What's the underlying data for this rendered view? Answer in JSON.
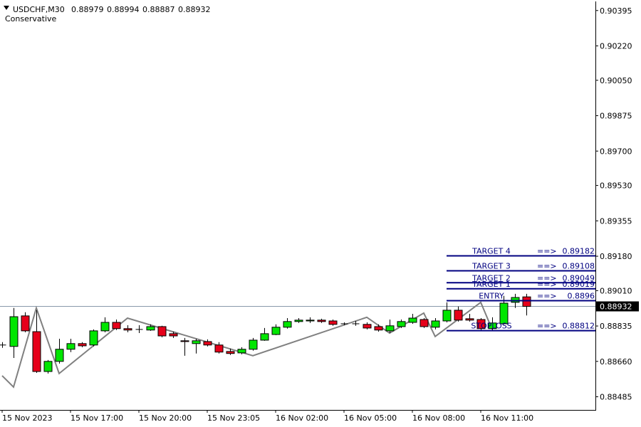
{
  "chart_data": {
    "type": "candlestick",
    "symbol": "USDCHF,M30",
    "subtitle": "Conservative",
    "categories": [
      "15 Nov 2023",
      null,
      null,
      null,
      null,
      null,
      "15 Nov 17:00",
      null,
      null,
      null,
      null,
      null,
      "15 Nov 20:00",
      null,
      null,
      null,
      null,
      null,
      "15 Nov 23:05",
      null,
      null,
      null,
      null,
      null,
      "16 Nov 02:00",
      null,
      null,
      null,
      null,
      null,
      "16 Nov 05:00",
      null,
      null,
      null,
      null,
      null,
      "16 Nov 08:00",
      null,
      null,
      null,
      null,
      null,
      "16 Nov 11:00",
      null,
      null,
      null,
      null
    ],
    "open": [
      0.88741,
      0.88734,
      0.88885,
      0.88807,
      0.8861,
      0.8866,
      0.8872,
      0.88748,
      0.88741,
      0.88811,
      0.88853,
      0.88822,
      0.88818,
      0.88815,
      0.88832,
      0.88797,
      0.88762,
      0.88748,
      0.88758,
      0.88741,
      0.88709,
      0.88702,
      0.8872,
      0.88765,
      0.88793,
      0.88829,
      0.88857,
      0.8886,
      0.88864,
      0.8886,
      0.88846,
      0.88846,
      0.88843,
      0.88832,
      0.88811,
      0.88832,
      0.88853,
      0.88867,
      0.88829,
      0.8886,
      0.88913,
      0.88871,
      0.88867,
      0.88822,
      0.88846,
      0.88952,
      0.88979
    ],
    "high": [
      0.88755,
      0.88924,
      0.88903,
      0.88913,
      0.88667,
      0.88772,
      0.88772,
      0.88755,
      0.88818,
      0.88878,
      0.88867,
      0.88839,
      0.88839,
      0.88843,
      0.88836,
      0.88807,
      0.88776,
      0.88772,
      0.88769,
      0.88755,
      0.88723,
      0.8873,
      0.88776,
      0.88825,
      0.88843,
      0.88874,
      0.88874,
      0.88878,
      0.88871,
      0.88867,
      0.88853,
      0.8886,
      0.88853,
      0.88843,
      0.88867,
      0.88867,
      0.88895,
      0.88874,
      0.88874,
      0.88952,
      0.88931,
      0.88895,
      0.88874,
      0.88878,
      0.88984,
      0.88994,
      0.88994
    ],
    "low": [
      0.88727,
      0.88677,
      0.88804,
      0.88603,
      0.886,
      0.88649,
      0.88706,
      0.8873,
      0.88734,
      0.88804,
      0.88815,
      0.88804,
      0.888,
      0.88811,
      0.88779,
      0.88776,
      0.88688,
      0.88699,
      0.88734,
      0.88699,
      0.88692,
      0.88695,
      0.88713,
      0.88762,
      0.8879,
      0.88822,
      0.8885,
      0.8885,
      0.8885,
      0.88836,
      0.88839,
      0.88836,
      0.88818,
      0.88807,
      0.888,
      0.88825,
      0.88846,
      0.88825,
      0.88818,
      0.88853,
      0.88857,
      0.88857,
      0.88815,
      0.88815,
      0.88843,
      0.88924,
      0.88887
    ],
    "close": [
      0.88741,
      0.88881,
      0.88811,
      0.8861,
      0.8866,
      0.8872,
      0.88748,
      0.88737,
      0.88811,
      0.88853,
      0.88822,
      0.88815,
      0.88818,
      0.88832,
      0.88786,
      0.88786,
      0.88758,
      0.88762,
      0.88741,
      0.88706,
      0.88699,
      0.8872,
      0.88765,
      0.88797,
      0.88829,
      0.88857,
      0.88864,
      0.88864,
      0.88857,
      0.88843,
      0.88846,
      0.88846,
      0.88825,
      0.88815,
      0.88836,
      0.88857,
      0.88874,
      0.88832,
      0.8886,
      0.88913,
      0.88864,
      0.88864,
      0.88822,
      0.8885,
      0.88948,
      0.88976,
      0.88932
    ],
    "up_color": "#00e600",
    "down_color": "#e6001a",
    "zigzag": {
      "color": "#808080",
      "x": [
        0,
        1,
        3,
        5,
        11,
        22,
        32,
        34,
        37,
        38,
        42,
        43
      ],
      "values": [
        0.88589,
        0.88533,
        0.88924,
        0.886,
        0.88874,
        0.88688,
        0.88878,
        0.888,
        0.88899,
        0.88783,
        0.88952,
        0.88818
      ]
    },
    "levels": [
      {
        "label": "TARGET 4",
        "arrow": "==>",
        "value": 0.89182
      },
      {
        "label": "TARGET 3",
        "arrow": "==>",
        "value": 0.89108
      },
      {
        "label": "TARGET 2",
        "arrow": "==>",
        "value": 0.89049
      },
      {
        "label": "TARGET 1",
        "arrow": "==>",
        "value": 0.89019
      },
      {
        "label": "ENTRY",
        "arrow": "==>",
        "value": 0.8896
      },
      {
        "label": "STOPLOSS",
        "arrow": "==>",
        "value": 0.88812
      }
    ],
    "level_color": "#000080",
    "ylim": [
      0.8842,
      0.9044
    ],
    "yticks": [
      {
        "value": 0.90395,
        "label": "0.90395"
      },
      {
        "value": 0.9022,
        "label": "0.90220"
      },
      {
        "value": 0.9005,
        "label": "0.90050"
      },
      {
        "value": 0.89875,
        "label": "0.89875"
      },
      {
        "value": 0.897,
        "label": "0.89700"
      },
      {
        "value": 0.8953,
        "label": "0.89530"
      },
      {
        "value": 0.89355,
        "label": "0.89355"
      },
      {
        "value": 0.8918,
        "label": "0.89180"
      },
      {
        "value": 0.8901,
        "label": "0.89010"
      },
      {
        "value": 0.88835,
        "label": "0.88835"
      },
      {
        "value": 0.8866,
        "label": "0.88660"
      },
      {
        "value": 0.88485,
        "label": "0.88485"
      }
    ]
  }
}
